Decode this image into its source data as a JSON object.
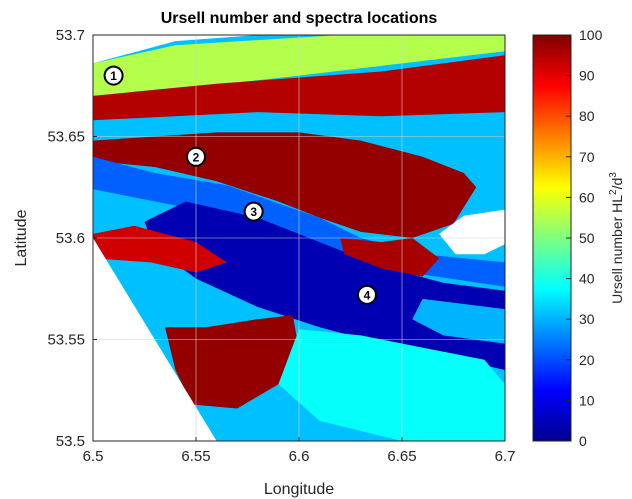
{
  "chart_data": {
    "type": "heatmap",
    "title": "Ursell number and spectra locations",
    "xlabel": "Longitude",
    "ylabel": "Latitude",
    "xlim": [
      6.5,
      6.7
    ],
    "ylim": [
      53.5,
      53.7
    ],
    "x_ticks": [
      "6.5",
      "6.55",
      "6.6",
      "6.65",
      "6.7"
    ],
    "y_ticks": [
      "53.5",
      "53.55",
      "53.6",
      "53.65",
      "53.7"
    ],
    "grid": true,
    "colorbar": {
      "label": "Ursell number HL",
      "label_superscript": "2",
      "label_suffix": "/d",
      "label_suffix_superscript": "3",
      "range": [
        0,
        100
      ],
      "ticks": [
        "0",
        "10",
        "20",
        "30",
        "40",
        "50",
        "60",
        "70",
        "80",
        "90",
        "100"
      ],
      "colormap": "jet"
    },
    "spectra_locations": [
      {
        "label": "1",
        "lon": 6.51,
        "lat": 53.68
      },
      {
        "label": "2",
        "lon": 6.55,
        "lat": 53.64
      },
      {
        "label": "3",
        "lon": 6.578,
        "lat": 53.613
      },
      {
        "label": "4",
        "lon": 6.633,
        "lat": 53.572
      }
    ],
    "field_regions": [
      {
        "name": "north-yellow-band",
        "value": 55,
        "points": [
          [
            6.5,
            53.686
          ],
          [
            6.54,
            53.695
          ],
          [
            6.62,
            53.7
          ],
          [
            6.7,
            53.7
          ],
          [
            6.7,
            53.692
          ],
          [
            6.6,
            53.68
          ],
          [
            6.53,
            53.672
          ],
          [
            6.5,
            53.67
          ]
        ]
      },
      {
        "name": "north-red-band",
        "value": 95,
        "points": [
          [
            6.5,
            53.67
          ],
          [
            6.56,
            53.676
          ],
          [
            6.64,
            53.682
          ],
          [
            6.7,
            53.69
          ],
          [
            6.7,
            53.662
          ],
          [
            6.64,
            53.66
          ],
          [
            6.58,
            53.662
          ],
          [
            6.5,
            53.658
          ]
        ]
      },
      {
        "name": "red-channel-bank",
        "value": 98,
        "points": [
          [
            6.5,
            53.648
          ],
          [
            6.56,
            53.652
          ],
          [
            6.6,
            53.652
          ],
          [
            6.63,
            53.648
          ],
          [
            6.66,
            53.64
          ],
          [
            6.68,
            53.632
          ],
          [
            6.686,
            53.625
          ],
          [
            6.675,
            53.607
          ],
          [
            6.655,
            53.6
          ],
          [
            6.63,
            53.603
          ],
          [
            6.61,
            53.61
          ],
          [
            6.59,
            53.618
          ],
          [
            6.56,
            53.628
          ],
          [
            6.53,
            53.635
          ],
          [
            6.5,
            53.638
          ]
        ]
      },
      {
        "name": "channel-light-blue",
        "value": 22,
        "points": [
          [
            6.5,
            53.64
          ],
          [
            6.53,
            53.632
          ],
          [
            6.565,
            53.626
          ],
          [
            6.59,
            53.617
          ],
          [
            6.61,
            53.61
          ],
          [
            6.63,
            53.6
          ],
          [
            6.66,
            53.592
          ],
          [
            6.7,
            53.588
          ],
          [
            6.7,
            53.576
          ],
          [
            6.66,
            53.582
          ],
          [
            6.63,
            53.588
          ],
          [
            6.6,
            53.598
          ],
          [
            6.57,
            53.608
          ],
          [
            6.54,
            53.616
          ],
          [
            6.5,
            53.624
          ]
        ]
      },
      {
        "name": "channel-deep-blue",
        "value": 5,
        "points": [
          [
            6.545,
            53.618
          ],
          [
            6.58,
            53.61
          ],
          [
            6.61,
            53.598
          ],
          [
            6.64,
            53.586
          ],
          [
            6.67,
            53.578
          ],
          [
            6.7,
            53.574
          ],
          [
            6.7,
            53.535
          ],
          [
            6.67,
            53.542
          ],
          [
            6.64,
            53.548
          ],
          [
            6.61,
            53.556
          ],
          [
            6.58,
            53.566
          ],
          [
            6.55,
            53.58
          ],
          [
            6.53,
            53.595
          ],
          [
            6.525,
            53.608
          ]
        ]
      },
      {
        "name": "south-red-shoal",
        "value": 98,
        "points": [
          [
            6.535,
            53.556
          ],
          [
            6.555,
            53.556
          ],
          [
            6.58,
            53.56
          ],
          [
            6.597,
            53.562
          ],
          [
            6.6,
            53.545
          ],
          [
            6.59,
            53.528
          ],
          [
            6.57,
            53.516
          ],
          [
            6.548,
            53.518
          ],
          [
            6.54,
            53.535
          ]
        ]
      },
      {
        "name": "west-red-shoal",
        "value": 92,
        "points": [
          [
            6.5,
            53.602
          ],
          [
            6.52,
            53.606
          ],
          [
            6.55,
            53.598
          ],
          [
            6.565,
            53.588
          ],
          [
            6.55,
            53.583
          ],
          [
            6.528,
            53.588
          ],
          [
            6.5,
            53.59
          ]
        ]
      },
      {
        "name": "south-mid-red",
        "value": 95,
        "points": [
          [
            6.625,
            53.53
          ],
          [
            6.643,
            53.532
          ],
          [
            6.655,
            53.523
          ],
          [
            6.642,
            53.514
          ],
          [
            6.624,
            53.518
          ]
        ]
      },
      {
        "name": "south-cyan",
        "value": 38,
        "points": [
          [
            6.6,
            53.555
          ],
          [
            6.63,
            53.552
          ],
          [
            6.66,
            53.546
          ],
          [
            6.69,
            53.54
          ],
          [
            6.7,
            53.528
          ],
          [
            6.7,
            53.5
          ],
          [
            6.65,
            53.5
          ],
          [
            6.61,
            53.51
          ],
          [
            6.59,
            53.528
          ]
        ]
      },
      {
        "name": "east-red-shoal",
        "value": 96,
        "points": [
          [
            6.62,
            53.6
          ],
          [
            6.64,
            53.598
          ],
          [
            6.655,
            53.6
          ],
          [
            6.668,
            53.59
          ],
          [
            6.66,
            53.581
          ],
          [
            6.64,
            53.585
          ],
          [
            6.622,
            53.592
          ]
        ]
      },
      {
        "name": "southeast-cyan",
        "value": 30,
        "points": [
          [
            6.66,
            53.57
          ],
          [
            6.7,
            53.565
          ],
          [
            6.7,
            53.548
          ],
          [
            6.67,
            53.552
          ],
          [
            6.655,
            53.56
          ]
        ]
      }
    ],
    "no_data_regions": [
      {
        "name": "northwest-white",
        "points": [
          [
            6.5,
            53.7
          ],
          [
            6.5,
            53.686
          ],
          [
            6.54,
            53.697
          ],
          [
            6.58,
            53.7
          ]
        ]
      },
      {
        "name": "southwest-white",
        "points": [
          [
            6.5,
            53.5
          ],
          [
            6.5,
            53.6
          ],
          [
            6.56,
            53.5
          ]
        ]
      },
      {
        "name": "east-island",
        "points": [
          [
            6.668,
            53.602
          ],
          [
            6.68,
            53.611
          ],
          [
            6.7,
            53.614
          ],
          [
            6.7,
            53.597
          ],
          [
            6.69,
            53.592
          ],
          [
            6.676,
            53.592
          ]
        ]
      }
    ]
  }
}
